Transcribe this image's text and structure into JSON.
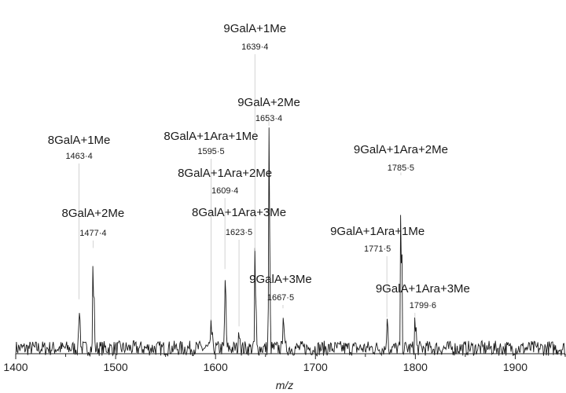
{
  "chart_data": {
    "type": "line",
    "title": "",
    "xlabel": "m/z",
    "ylabel": "",
    "xlim": [
      1400,
      1950
    ],
    "ylim": [
      0,
      100
    ],
    "x_ticks": [
      1400,
      1500,
      1600,
      1700,
      1800,
      1900
    ],
    "grid": false,
    "legend": "none",
    "line_color": "#1a1a1a",
    "noise_level": 2.5,
    "peaks": [
      {
        "mz": 1463.4,
        "mz_label": "1463·4",
        "name": "8GalA+1Me",
        "intensity": 17
      },
      {
        "mz": 1477.4,
        "mz_label": "1477·4",
        "name": "8GalA+2Me",
        "intensity": 34
      },
      {
        "mz": 1595.5,
        "mz_label": "1595·5",
        "name": "8GalA+1Ara+1Me",
        "intensity": 10
      },
      {
        "mz": 1609.4,
        "mz_label": "1609·4",
        "name": "8GalA+1Ara+2Me",
        "intensity": 27
      },
      {
        "mz": 1623.5,
        "mz_label": "1623·5",
        "name": "8GalA+1Ara+3Me",
        "intensity": 8
      },
      {
        "mz": 1639.4,
        "mz_label": "1639·4",
        "name": "9GalA+1Me",
        "intensity": 33
      },
      {
        "mz": 1653.4,
        "mz_label": "1653·4",
        "name": "9GalA+2Me",
        "intensity": 76
      },
      {
        "mz": 1667.5,
        "mz_label": "1667·5",
        "name": "9GalA+3Me",
        "intensity": 14
      },
      {
        "mz": 1771.5,
        "mz_label": "1771·5",
        "name": "9GalA+1Ara+1Me",
        "intensity": 11
      },
      {
        "mz": 1785.5,
        "mz_label": "1785·5",
        "name": "9GalA+1Ara+2Me",
        "intensity": 59
      },
      {
        "mz": 1799.6,
        "mz_label": "1799·6",
        "name": "9GalA+1Ara+3Me",
        "intensity": 11
      }
    ],
    "minor_peaks": [
      {
        "mz": 1464.4,
        "intensity": 11
      },
      {
        "mz": 1478.4,
        "intensity": 22
      },
      {
        "mz": 1596.5,
        "intensity": 6
      },
      {
        "mz": 1610.4,
        "intensity": 18
      },
      {
        "mz": 1624.5,
        "intensity": 5
      },
      {
        "mz": 1640.4,
        "intensity": 22
      },
      {
        "mz": 1654.4,
        "intensity": 40
      },
      {
        "mz": 1668.5,
        "intensity": 9
      },
      {
        "mz": 1772.5,
        "intensity": 8
      },
      {
        "mz": 1786.5,
        "intensity": 32
      },
      {
        "mz": 1800.6,
        "intensity": 8
      }
    ]
  }
}
